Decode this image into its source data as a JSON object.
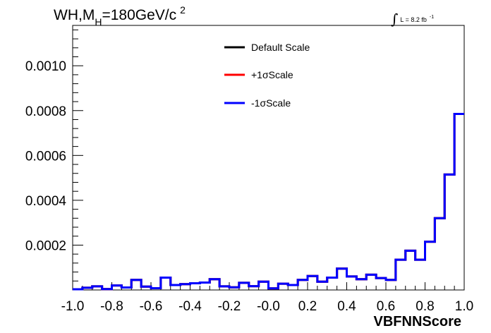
{
  "chart_data": {
    "type": "line",
    "title": {
      "prefix": "WH,M",
      "subscript": "H",
      "middle": "=180GeV/c",
      "superscript": "2"
    },
    "luminosity": {
      "integral_symbol": "∫",
      "text": "L = 8.2 fb",
      "superscript": "-1"
    },
    "xlabel": "VBFNNScore",
    "ylabel": "",
    "xlim": [
      -1.0,
      1.0
    ],
    "ylim": [
      0,
      0.00118
    ],
    "x_tick_labels": [
      "-1.0",
      "-0.8",
      "-0.6",
      "-0.4",
      "-0.2",
      "-0.0",
      "0.2",
      "0.4",
      "0.6",
      "0.8",
      "1.0"
    ],
    "x_tick_values": [
      -1.0,
      -0.8,
      -0.6,
      -0.4,
      -0.2,
      0.0,
      0.2,
      0.4,
      0.6,
      0.8,
      1.0
    ],
    "y_tick_labels": [
      "0.0002",
      "0.0004",
      "0.0006",
      "0.0008",
      "0.0010"
    ],
    "y_tick_values": [
      0.0002,
      0.0004,
      0.0006,
      0.0008,
      0.001
    ],
    "grid": false,
    "legend_position": "top-center",
    "bin_edges_start": -1.0,
    "bin_width": 0.05,
    "series": [
      {
        "name": "Default Scale",
        "color": "#000000",
        "values": [
          3e-06,
          1e-05,
          1.6e-05,
          4e-06,
          2e-05,
          1.1e-05,
          4.5e-05,
          1.5e-05,
          8e-06,
          5.5e-05,
          2.2e-05,
          2.6e-05,
          3e-05,
          3.3e-05,
          4.8e-05,
          1.6e-05,
          1.2e-05,
          3.2e-05,
          1.7e-05,
          3.7e-05,
          7e-06,
          2.8e-05,
          2.2e-05,
          4.5e-05,
          6.2e-05,
          3.7e-05,
          5.5e-05,
          9.5e-05,
          6e-05,
          4.8e-05,
          6.8e-05,
          5.3e-05,
          4.5e-05,
          0.000135,
          0.000175,
          0.000135,
          0.000215,
          0.00032,
          0.000515,
          0.000785
        ]
      },
      {
        "name": "+1σScale",
        "color": "#ff0000",
        "values": [
          3e-06,
          1e-05,
          1.6e-05,
          4e-06,
          2e-05,
          1.1e-05,
          4.5e-05,
          1.5e-05,
          8e-06,
          5.5e-05,
          2.2e-05,
          2.6e-05,
          3e-05,
          3.3e-05,
          4.8e-05,
          1.6e-05,
          1.2e-05,
          3.2e-05,
          1.7e-05,
          3.7e-05,
          7e-06,
          2.8e-05,
          2.2e-05,
          4.5e-05,
          6.2e-05,
          3.7e-05,
          5.5e-05,
          9.5e-05,
          6e-05,
          4.8e-05,
          6.8e-05,
          5.3e-05,
          4.5e-05,
          0.000135,
          0.000175,
          0.000135,
          0.000215,
          0.00032,
          0.000515,
          0.000785
        ]
      },
      {
        "name": "-1σScale",
        "color": "#0000ff",
        "values": [
          3e-06,
          1e-05,
          1.6e-05,
          4e-06,
          2e-05,
          1.1e-05,
          4.5e-05,
          1.5e-05,
          8e-06,
          5.5e-05,
          2.2e-05,
          2.6e-05,
          3e-05,
          3.3e-05,
          4.8e-05,
          1.6e-05,
          1.2e-05,
          3.2e-05,
          1.7e-05,
          3.7e-05,
          7e-06,
          2.8e-05,
          2.2e-05,
          4.5e-05,
          6.2e-05,
          3.7e-05,
          5.5e-05,
          9.5e-05,
          6e-05,
          4.8e-05,
          6.8e-05,
          5.3e-05,
          4.5e-05,
          0.000135,
          0.000175,
          0.000135,
          0.000215,
          0.00032,
          0.000515,
          0.000785
        ]
      }
    ]
  }
}
